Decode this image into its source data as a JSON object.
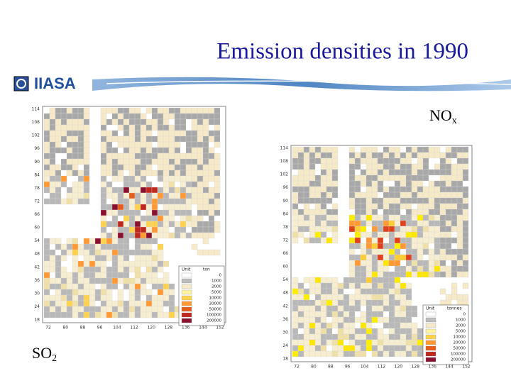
{
  "header": {
    "title": "Emission densities in 1990",
    "logo": "IIASA"
  },
  "maps": [
    {
      "label": "SO",
      "label_sub": "2",
      "y_axis": [
        "114",
        "108",
        "102",
        "96",
        "90",
        "84",
        "78",
        "72",
        "66",
        "60",
        "54",
        "48",
        "42",
        "36",
        "30",
        "24",
        "18"
      ],
      "x_axis": [
        "72",
        "80",
        "88",
        "96",
        "104",
        "112",
        "120",
        "128",
        "136",
        "144",
        "152"
      ],
      "legend": {
        "headers": [
          "Unit",
          "ton"
        ],
        "entries": [
          "0",
          "1000",
          "2000",
          "5000",
          "10000",
          "20000",
          "50000",
          "100000",
          "200000"
        ]
      }
    },
    {
      "label": "NO",
      "label_sub": "x",
      "y_axis": [
        "114",
        "108",
        "102",
        "96",
        "90",
        "84",
        "78",
        "72",
        "66",
        "60",
        "54",
        "48",
        "42",
        "36",
        "30",
        "24",
        "18"
      ],
      "x_axis": [
        "72",
        "80",
        "88",
        "96",
        "104",
        "112",
        "120",
        "128",
        "136",
        "144",
        "152"
      ],
      "legend": {
        "headers": [
          "Unit",
          "tonnes"
        ],
        "entries": [
          "0",
          "1000",
          "2000",
          "5000",
          "10000",
          "20000",
          "50000",
          "100000",
          "200000"
        ]
      }
    }
  ]
}
